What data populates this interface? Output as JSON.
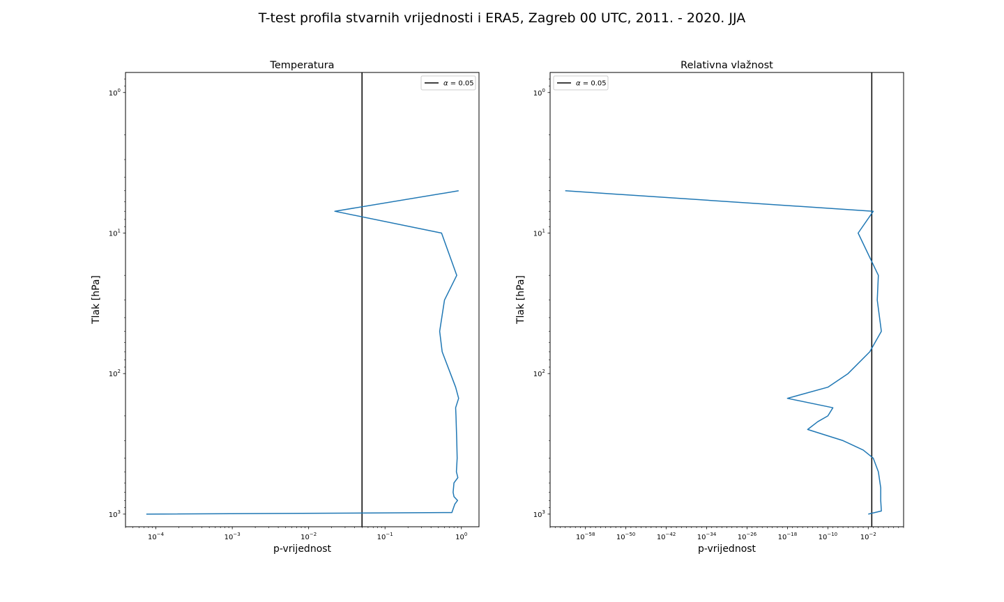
{
  "figure": {
    "suptitle": "T-test profila stvarnih vrijednosti i ERA5, Zagreb 00 UTC, 2011. - 2020. JJA"
  },
  "chart_data": [
    {
      "type": "line",
      "title": "Temperatura",
      "xlabel": "p-vrijednost",
      "ylabel": "Tlak [hPa]",
      "xscale": "log",
      "yscale": "log",
      "yinverted": true,
      "xlim": [
        4e-05,
        1.7
      ],
      "ylim": [
        1230,
        0.72
      ],
      "xticks": [
        {
          "base": "10",
          "exp": "−4",
          "value": 0.0001
        },
        {
          "base": "10",
          "exp": "−3",
          "value": 0.001
        },
        {
          "base": "10",
          "exp": "−2",
          "value": 0.01
        },
        {
          "base": "10",
          "exp": "−1",
          "value": 0.1
        },
        {
          "base": "10",
          "exp": "0",
          "value": 1
        }
      ],
      "yticks": [
        {
          "base": "10",
          "exp": "0",
          "value": 1
        },
        {
          "base": "10",
          "exp": "1",
          "value": 10
        },
        {
          "base": "10",
          "exp": "2",
          "value": 100
        },
        {
          "base": "10",
          "exp": "3",
          "value": 1000
        }
      ],
      "grid": false,
      "legend": {
        "placement": "upper right",
        "label_prefix": "α",
        "label_value": " = 0.05"
      },
      "alpha_line": {
        "x": 0.05,
        "color": "#000000"
      },
      "series": [
        {
          "color": "#1f77b4",
          "x": [
            0.92,
            0.022,
            0.55,
            0.87,
            0.6,
            0.52,
            0.56,
            0.72,
            0.84,
            0.92,
            0.84,
            0.85,
            0.86,
            0.87,
            0.88,
            0.86,
            0.9,
            0.8,
            0.78,
            0.8,
            0.89,
            0.82,
            0.75,
            7.5e-05
          ],
          "y": [
            5,
            7,
            10,
            20,
            30,
            50,
            70,
            100,
            125,
            150,
            175,
            200,
            250,
            300,
            400,
            500,
            550,
            600,
            700,
            750,
            800,
            850,
            975,
            1000
          ]
        }
      ]
    },
    {
      "type": "line",
      "title": "Relativna vlažnost",
      "xlabel": "p-vrijednost",
      "ylabel": "Tlak [hPa]",
      "xscale": "log",
      "yscale": "log",
      "yinverted": true,
      "xlim": [
        1e-65,
        100000.0
      ],
      "ylim": [
        1230,
        0.72
      ],
      "xticks": [
        {
          "base": "10",
          "exp": "−58",
          "value": 1e-58
        },
        {
          "base": "10",
          "exp": "−50",
          "value": 1e-50
        },
        {
          "base": "10",
          "exp": "−42",
          "value": 1e-42
        },
        {
          "base": "10",
          "exp": "−34",
          "value": 1e-34
        },
        {
          "base": "10",
          "exp": "−26",
          "value": 1e-26
        },
        {
          "base": "10",
          "exp": "−18",
          "value": 1e-18
        },
        {
          "base": "10",
          "exp": "−10",
          "value": 1e-10
        },
        {
          "base": "10",
          "exp": "−2",
          "value": 0.01
        }
      ],
      "yticks": [
        {
          "base": "10",
          "exp": "0",
          "value": 1
        },
        {
          "base": "10",
          "exp": "1",
          "value": 10
        },
        {
          "base": "10",
          "exp": "2",
          "value": 100
        },
        {
          "base": "10",
          "exp": "3",
          "value": 1000
        }
      ],
      "grid": false,
      "legend": {
        "placement": "upper left",
        "label_prefix": "α",
        "label_value": " = 0.05"
      },
      "alpha_line": {
        "x": 0.05,
        "color": "#000000"
      },
      "series": [
        {
          "color": "#1f77b4",
          "x": [
            1e-62,
            0.1,
            0.0001,
            1.0,
            0.6,
            4.0,
            0.02,
            1e-06,
            1e-10,
            1e-18,
            1e-09,
            1e-10,
            1e-12,
            1e-14,
            1e-07,
            0.001,
            0.1,
            1.0,
            3.0,
            3.0,
            4.0,
            0.01
          ],
          "y": [
            5,
            7,
            10,
            20,
            30,
            50,
            70,
            100,
            125,
            150,
            175,
            200,
            220,
            250,
            300,
            350,
            400,
            500,
            650,
            800,
            950,
            1000
          ]
        }
      ]
    }
  ]
}
